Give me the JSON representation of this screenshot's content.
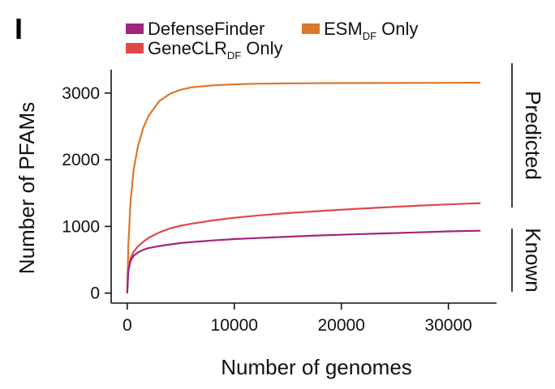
{
  "panel_label": "I",
  "legend": [
    {
      "name": "DefenseFinder",
      "sub": "",
      "suffix": "",
      "color": "#a3247c"
    },
    {
      "name": "ESM",
      "sub": "DF",
      "suffix": " Only",
      "color": "#dc782a"
    },
    {
      "name": "GeneCLR",
      "sub": "DF",
      "suffix": " Only",
      "color": "#e04848"
    }
  ],
  "brackets": {
    "upper": "Predicted",
    "lower": "Known"
  },
  "chart_data": {
    "type": "line",
    "title": "",
    "xlabel": "Number of genomes",
    "ylabel": "Number of PFAMs",
    "xlim": [
      -1500,
      34500
    ],
    "ylim": [
      -150,
      3350
    ],
    "xticks": [
      0,
      10000,
      20000,
      30000
    ],
    "yticks": [
      0,
      1000,
      2000,
      3000
    ],
    "xtick_labels": [
      "0",
      "10000",
      "20000",
      "30000"
    ],
    "ytick_labels": [
      "0",
      "1000",
      "2000",
      "3000"
    ],
    "x": [
      0,
      100,
      300,
      600,
      1000,
      1500,
      2000,
      3000,
      4000,
      5000,
      6000,
      8000,
      10000,
      12000,
      15000,
      18000,
      21000,
      24000,
      27000,
      30000,
      33000
    ],
    "series": [
      {
        "name": "ESM_DF Only",
        "color": "#dc782a",
        "values": [
          0,
          700,
          1350,
          1850,
          2200,
          2480,
          2660,
          2880,
          2990,
          3050,
          3085,
          3115,
          3130,
          3140,
          3145,
          3148,
          3150,
          3151,
          3152,
          3153,
          3155
        ]
      },
      {
        "name": "GeneCLR_DF Only",
        "color": "#e04848",
        "values": [
          0,
          350,
          520,
          620,
          700,
          770,
          830,
          910,
          970,
          1010,
          1040,
          1090,
          1130,
          1160,
          1200,
          1230,
          1260,
          1285,
          1310,
          1330,
          1350
        ]
      },
      {
        "name": "DefenseFinder",
        "color": "#a3247c",
        "values": [
          0,
          330,
          480,
          560,
          610,
          650,
          675,
          705,
          730,
          750,
          765,
          790,
          810,
          825,
          845,
          865,
          880,
          895,
          910,
          925,
          935
        ]
      }
    ]
  }
}
